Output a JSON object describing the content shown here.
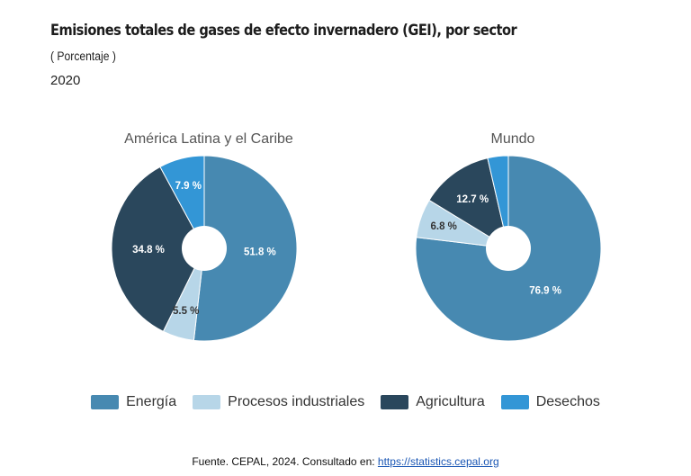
{
  "header": {
    "title": "Emisiones totales de gases de efecto invernadero (GEI), por sector",
    "subtitle": "( Porcentaje )",
    "year": "2020"
  },
  "colors": {
    "Energía": "#4789b1",
    "Procesos industriales": "#b7d6e8",
    "Agricultura": "#2a475c",
    "Desechos": "#3396d6"
  },
  "chart_data": [
    {
      "type": "pie",
      "title": "América Latina y el Caribe",
      "categories": [
        "Energía",
        "Procesos industriales",
        "Agricultura",
        "Desechos"
      ],
      "values": [
        51.8,
        5.5,
        34.8,
        7.9
      ],
      "labels": [
        "51.8 %",
        "5.5 %",
        "34.8 %",
        "7.9 %"
      ]
    },
    {
      "type": "pie",
      "title": "Mundo",
      "categories": [
        "Energía",
        "Procesos industriales",
        "Agricultura",
        "Desechos"
      ],
      "values": [
        76.9,
        6.8,
        12.7,
        3.6
      ],
      "labels": [
        "76.9 %",
        "6.8 %",
        "12.7 %",
        ""
      ]
    }
  ],
  "legend": {
    "items": [
      "Energía",
      "Procesos industriales",
      "Agricultura",
      "Desechos"
    ]
  },
  "footer": {
    "source_text": "Fuente. CEPAL, 2024. Consultado en: ",
    "source_link": "https://statistics.cepal.org"
  }
}
